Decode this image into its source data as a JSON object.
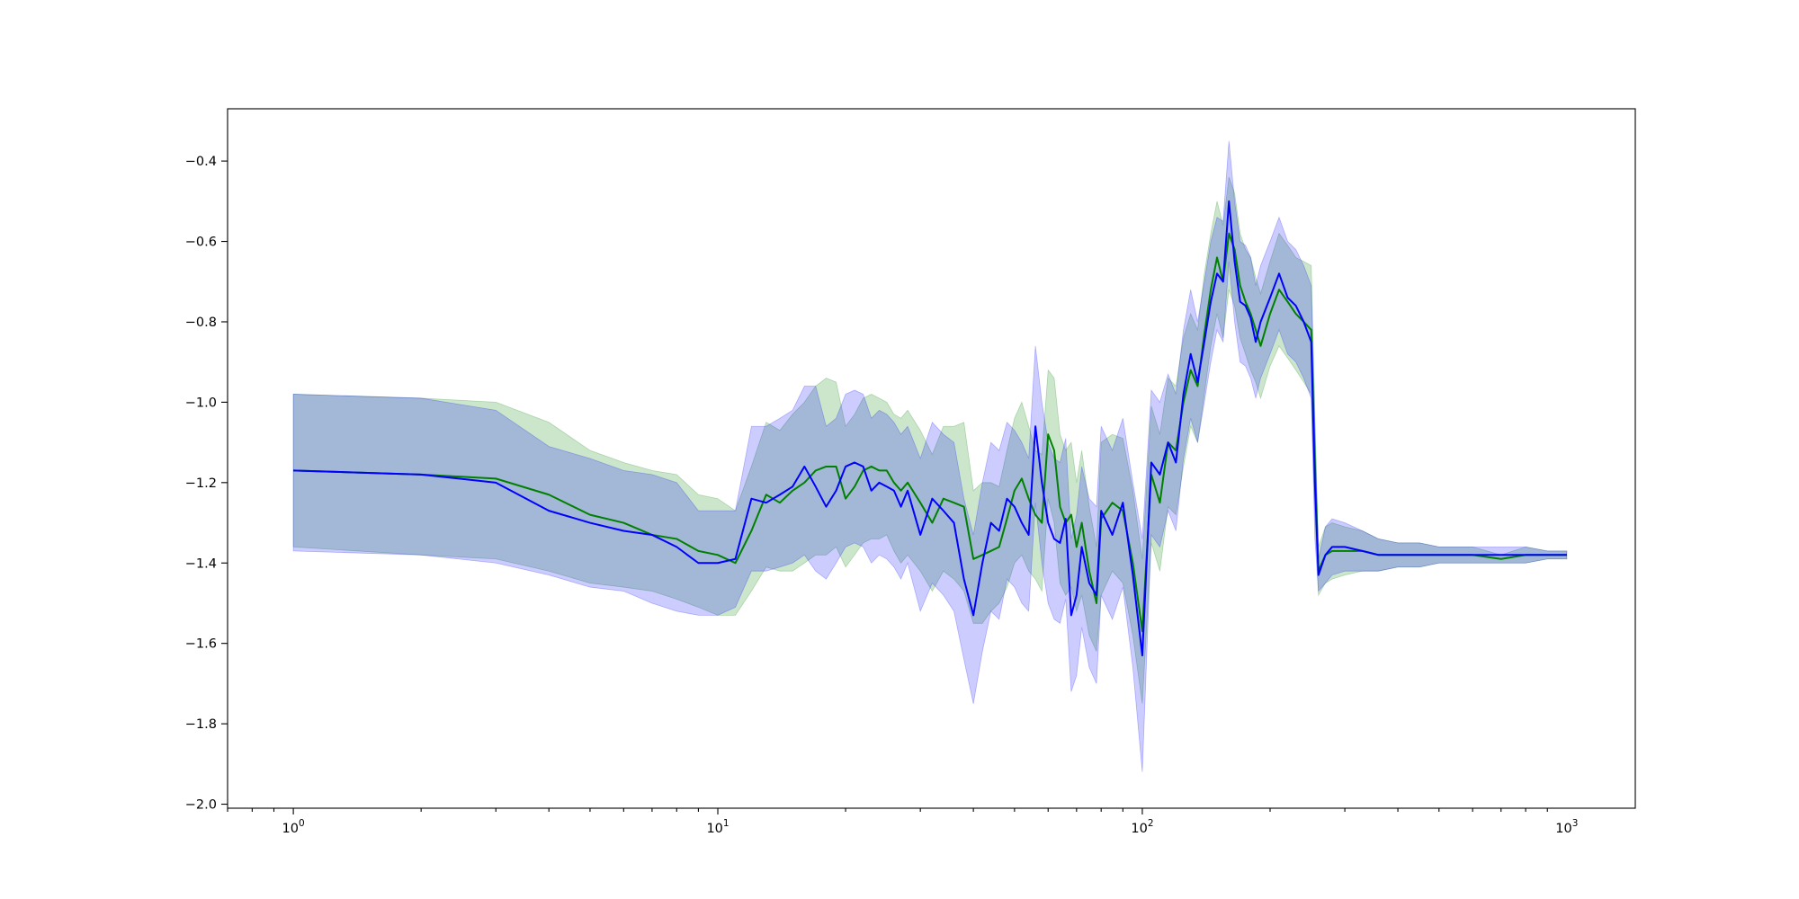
{
  "chart_data": {
    "type": "line",
    "title": "",
    "xlabel": "",
    "ylabel": "",
    "x_scale": "log",
    "xlim": [
      0.7,
      1450
    ],
    "ylim": [
      -2.01,
      -0.27
    ],
    "grid": false,
    "legend": "none",
    "x_ticks": [
      {
        "base": "10",
        "exp": "0",
        "value": 1
      },
      {
        "base": "10",
        "exp": "1",
        "value": 10
      },
      {
        "base": "10",
        "exp": "2",
        "value": 100
      },
      {
        "base": "10",
        "exp": "3",
        "value": 1000
      }
    ],
    "y_ticks": [
      {
        "label": "−0.4",
        "value": -0.4
      },
      {
        "label": "−0.6",
        "value": -0.6
      },
      {
        "label": "−0.8",
        "value": -0.8
      },
      {
        "label": "−1.0",
        "value": -1.0
      },
      {
        "label": "−1.2",
        "value": -1.2
      },
      {
        "label": "−1.4",
        "value": -1.4
      },
      {
        "label": "−1.6",
        "value": -1.6
      },
      {
        "label": "−1.8",
        "value": -1.8
      },
      {
        "label": "−2.0",
        "value": -2.0
      }
    ],
    "series": [
      {
        "color": "#008000",
        "band_color": "#008000",
        "band_opacity": 0.2,
        "x": [
          1,
          2,
          3,
          4,
          5,
          6,
          7,
          8,
          9,
          10,
          11,
          12,
          13,
          14,
          15,
          16,
          17,
          18,
          19,
          20,
          21,
          22,
          23,
          24,
          25,
          26,
          27,
          28,
          30,
          32,
          34,
          36,
          38,
          40,
          42,
          44,
          46,
          48,
          50,
          52,
          54,
          56,
          58,
          60,
          62,
          64,
          66,
          68,
          70,
          72,
          75,
          78,
          80,
          85,
          90,
          95,
          100,
          105,
          110,
          115,
          120,
          125,
          130,
          135,
          140,
          145,
          150,
          155,
          160,
          165,
          170,
          175,
          180,
          185,
          190,
          200,
          210,
          220,
          230,
          240,
          250,
          255,
          260,
          270,
          280,
          300,
          330,
          360,
          400,
          450,
          500,
          600,
          700,
          800,
          900,
          1000
        ],
        "y": [
          -1.17,
          -1.18,
          -1.19,
          -1.23,
          -1.28,
          -1.3,
          -1.33,
          -1.34,
          -1.37,
          -1.38,
          -1.4,
          -1.32,
          -1.23,
          -1.25,
          -1.22,
          -1.2,
          -1.17,
          -1.16,
          -1.16,
          -1.24,
          -1.21,
          -1.17,
          -1.16,
          -1.17,
          -1.17,
          -1.2,
          -1.22,
          -1.2,
          -1.25,
          -1.3,
          -1.24,
          -1.25,
          -1.26,
          -1.39,
          -1.38,
          -1.37,
          -1.36,
          -1.29,
          -1.22,
          -1.19,
          -1.24,
          -1.28,
          -1.3,
          -1.08,
          -1.12,
          -1.26,
          -1.3,
          -1.28,
          -1.36,
          -1.3,
          -1.42,
          -1.5,
          -1.29,
          -1.25,
          -1.27,
          -1.4,
          -1.57,
          -1.18,
          -1.25,
          -1.1,
          -1.12,
          -1.0,
          -0.92,
          -0.96,
          -0.83,
          -0.72,
          -0.64,
          -0.7,
          -0.58,
          -0.62,
          -0.71,
          -0.75,
          -0.78,
          -0.82,
          -0.86,
          -0.78,
          -0.72,
          -0.75,
          -0.78,
          -0.8,
          -0.82,
          -1.15,
          -1.42,
          -1.38,
          -1.37,
          -1.37,
          -1.37,
          -1.38,
          -1.38,
          -1.38,
          -1.38,
          -1.38,
          -1.39,
          -1.38,
          -1.38,
          -1.38
        ],
        "lower": [
          -1.36,
          -1.38,
          -1.39,
          -1.42,
          -1.45,
          -1.46,
          -1.47,
          -1.49,
          -1.51,
          -1.53,
          -1.53,
          -1.47,
          -1.41,
          -1.42,
          -1.42,
          -1.4,
          -1.38,
          -1.38,
          -1.36,
          -1.41,
          -1.38,
          -1.35,
          -1.34,
          -1.34,
          -1.33,
          -1.37,
          -1.4,
          -1.38,
          -1.42,
          -1.47,
          -1.42,
          -1.44,
          -1.47,
          -1.55,
          -1.55,
          -1.52,
          -1.5,
          -1.46,
          -1.4,
          -1.38,
          -1.42,
          -1.44,
          -1.47,
          -1.24,
          -1.3,
          -1.45,
          -1.48,
          -1.46,
          -1.52,
          -1.48,
          -1.58,
          -1.62,
          -1.48,
          -1.42,
          -1.45,
          -1.58,
          -1.75,
          -1.35,
          -1.42,
          -1.26,
          -1.28,
          -1.16,
          -1.06,
          -1.1,
          -0.98,
          -0.86,
          -0.78,
          -0.84,
          -0.72,
          -0.76,
          -0.84,
          -0.88,
          -0.92,
          -0.95,
          -0.99,
          -0.91,
          -0.86,
          -0.89,
          -0.92,
          -0.95,
          -0.98,
          -1.28,
          -1.48,
          -1.45,
          -1.44,
          -1.43,
          -1.42,
          -1.42,
          -1.41,
          -1.41,
          -1.4,
          -1.4,
          -1.4,
          -1.4,
          -1.39,
          -1.39
        ],
        "upper": [
          -0.98,
          -0.99,
          -1.0,
          -1.05,
          -1.12,
          -1.15,
          -1.17,
          -1.18,
          -1.23,
          -1.24,
          -1.27,
          -1.16,
          -1.05,
          -1.07,
          -1.03,
          -1.0,
          -0.96,
          -0.94,
          -0.95,
          -1.06,
          -1.03,
          -0.99,
          -0.98,
          -0.99,
          -1.0,
          -1.03,
          -1.04,
          -1.02,
          -1.07,
          -1.13,
          -1.06,
          -1.06,
          -1.05,
          -1.22,
          -1.2,
          -1.2,
          -1.21,
          -1.12,
          -1.04,
          -1.0,
          -1.06,
          -1.12,
          -1.13,
          -0.92,
          -0.94,
          -1.08,
          -1.12,
          -1.1,
          -1.2,
          -1.12,
          -1.26,
          -1.36,
          -1.1,
          -1.08,
          -1.09,
          -1.22,
          -1.39,
          -1.01,
          -1.08,
          -0.94,
          -0.96,
          -0.84,
          -0.78,
          -0.82,
          -0.68,
          -0.58,
          -0.5,
          -0.56,
          -0.44,
          -0.48,
          -0.58,
          -0.62,
          -0.64,
          -0.69,
          -0.73,
          -0.65,
          -0.58,
          -0.61,
          -0.64,
          -0.65,
          -0.66,
          -1.02,
          -1.36,
          -1.31,
          -1.3,
          -1.31,
          -1.32,
          -1.34,
          -1.35,
          -1.35,
          -1.36,
          -1.36,
          -1.38,
          -1.36,
          -1.37,
          -1.37
        ]
      },
      {
        "color": "#0000ff",
        "band_color": "#0000ff",
        "band_opacity": 0.2,
        "x": [
          1,
          2,
          3,
          4,
          5,
          6,
          7,
          8,
          9,
          10,
          11,
          12,
          13,
          14,
          15,
          16,
          17,
          18,
          19,
          20,
          21,
          22,
          23,
          24,
          25,
          26,
          27,
          28,
          30,
          32,
          34,
          36,
          38,
          40,
          42,
          44,
          46,
          48,
          50,
          52,
          54,
          56,
          58,
          60,
          62,
          64,
          66,
          68,
          70,
          72,
          75,
          78,
          80,
          85,
          90,
          95,
          100,
          105,
          110,
          115,
          120,
          125,
          130,
          135,
          140,
          145,
          150,
          155,
          160,
          165,
          170,
          175,
          180,
          185,
          190,
          200,
          210,
          220,
          230,
          240,
          250,
          255,
          260,
          270,
          280,
          300,
          330,
          360,
          400,
          450,
          500,
          600,
          700,
          800,
          900,
          1000
        ],
        "y": [
          -1.17,
          -1.18,
          -1.2,
          -1.27,
          -1.3,
          -1.32,
          -1.33,
          -1.36,
          -1.4,
          -1.4,
          -1.39,
          -1.24,
          -1.25,
          -1.23,
          -1.21,
          -1.16,
          -1.21,
          -1.26,
          -1.22,
          -1.16,
          -1.15,
          -1.16,
          -1.22,
          -1.2,
          -1.21,
          -1.22,
          -1.26,
          -1.22,
          -1.33,
          -1.24,
          -1.27,
          -1.3,
          -1.44,
          -1.53,
          -1.4,
          -1.3,
          -1.32,
          -1.24,
          -1.26,
          -1.3,
          -1.33,
          -1.06,
          -1.2,
          -1.3,
          -1.34,
          -1.35,
          -1.29,
          -1.53,
          -1.48,
          -1.36,
          -1.45,
          -1.48,
          -1.27,
          -1.33,
          -1.25,
          -1.43,
          -1.63,
          -1.15,
          -1.18,
          -1.1,
          -1.15,
          -0.98,
          -0.88,
          -0.95,
          -0.85,
          -0.75,
          -0.68,
          -0.7,
          -0.5,
          -0.65,
          -0.75,
          -0.76,
          -0.79,
          -0.85,
          -0.8,
          -0.74,
          -0.68,
          -0.74,
          -0.76,
          -0.8,
          -0.85,
          -1.2,
          -1.43,
          -1.38,
          -1.36,
          -1.36,
          -1.37,
          -1.38,
          -1.38,
          -1.38,
          -1.38,
          -1.38,
          -1.38,
          -1.38,
          -1.38,
          -1.38
        ],
        "lower": [
          -1.37,
          -1.38,
          -1.4,
          -1.43,
          -1.46,
          -1.47,
          -1.5,
          -1.52,
          -1.53,
          -1.53,
          -1.51,
          -1.42,
          -1.42,
          -1.41,
          -1.4,
          -1.38,
          -1.42,
          -1.44,
          -1.4,
          -1.36,
          -1.35,
          -1.36,
          -1.4,
          -1.38,
          -1.39,
          -1.41,
          -1.44,
          -1.4,
          -1.52,
          -1.45,
          -1.48,
          -1.52,
          -1.64,
          -1.75,
          -1.62,
          -1.52,
          -1.54,
          -1.44,
          -1.46,
          -1.5,
          -1.52,
          -1.25,
          -1.4,
          -1.5,
          -1.54,
          -1.55,
          -1.49,
          -1.72,
          -1.68,
          -1.56,
          -1.66,
          -1.7,
          -1.48,
          -1.54,
          -1.46,
          -1.66,
          -1.92,
          -1.33,
          -1.36,
          -1.27,
          -1.32,
          -1.14,
          -1.04,
          -1.1,
          -1.0,
          -0.9,
          -0.82,
          -0.85,
          -0.65,
          -0.8,
          -0.9,
          -0.91,
          -0.94,
          -0.99,
          -0.94,
          -0.88,
          -0.82,
          -0.88,
          -0.9,
          -0.94,
          -0.99,
          -1.34,
          -1.47,
          -1.45,
          -1.43,
          -1.42,
          -1.42,
          -1.42,
          -1.41,
          -1.41,
          -1.4,
          -1.4,
          -1.4,
          -1.4,
          -1.39,
          -1.39
        ],
        "upper": [
          -0.98,
          -0.99,
          -1.02,
          -1.11,
          -1.14,
          -1.17,
          -1.18,
          -1.2,
          -1.27,
          -1.27,
          -1.27,
          -1.06,
          -1.06,
          -1.04,
          -1.02,
          -0.96,
          -0.96,
          -1.06,
          -1.04,
          -0.98,
          -0.97,
          -0.98,
          -1.04,
          -1.02,
          -1.03,
          -1.05,
          -1.08,
          -1.06,
          -1.14,
          -1.05,
          -1.08,
          -1.1,
          -1.24,
          -1.33,
          -1.2,
          -1.1,
          -1.12,
          -1.05,
          -1.07,
          -1.1,
          -1.14,
          -0.86,
          -1.0,
          -1.1,
          -1.14,
          -1.15,
          -1.09,
          -1.34,
          -1.28,
          -1.16,
          -1.24,
          -1.26,
          -1.06,
          -1.12,
          -1.04,
          -1.2,
          -1.34,
          -0.97,
          -1.0,
          -0.93,
          -0.98,
          -0.82,
          -0.72,
          -0.8,
          -0.7,
          -0.6,
          -0.54,
          -0.55,
          -0.35,
          -0.5,
          -0.6,
          -0.61,
          -0.64,
          -0.71,
          -0.66,
          -0.6,
          -0.54,
          -0.6,
          -0.62,
          -0.66,
          -0.71,
          -1.06,
          -1.39,
          -1.31,
          -1.29,
          -1.3,
          -1.32,
          -1.34,
          -1.35,
          -1.35,
          -1.36,
          -1.36,
          -1.36,
          -1.36,
          -1.37,
          -1.37
        ]
      }
    ]
  }
}
